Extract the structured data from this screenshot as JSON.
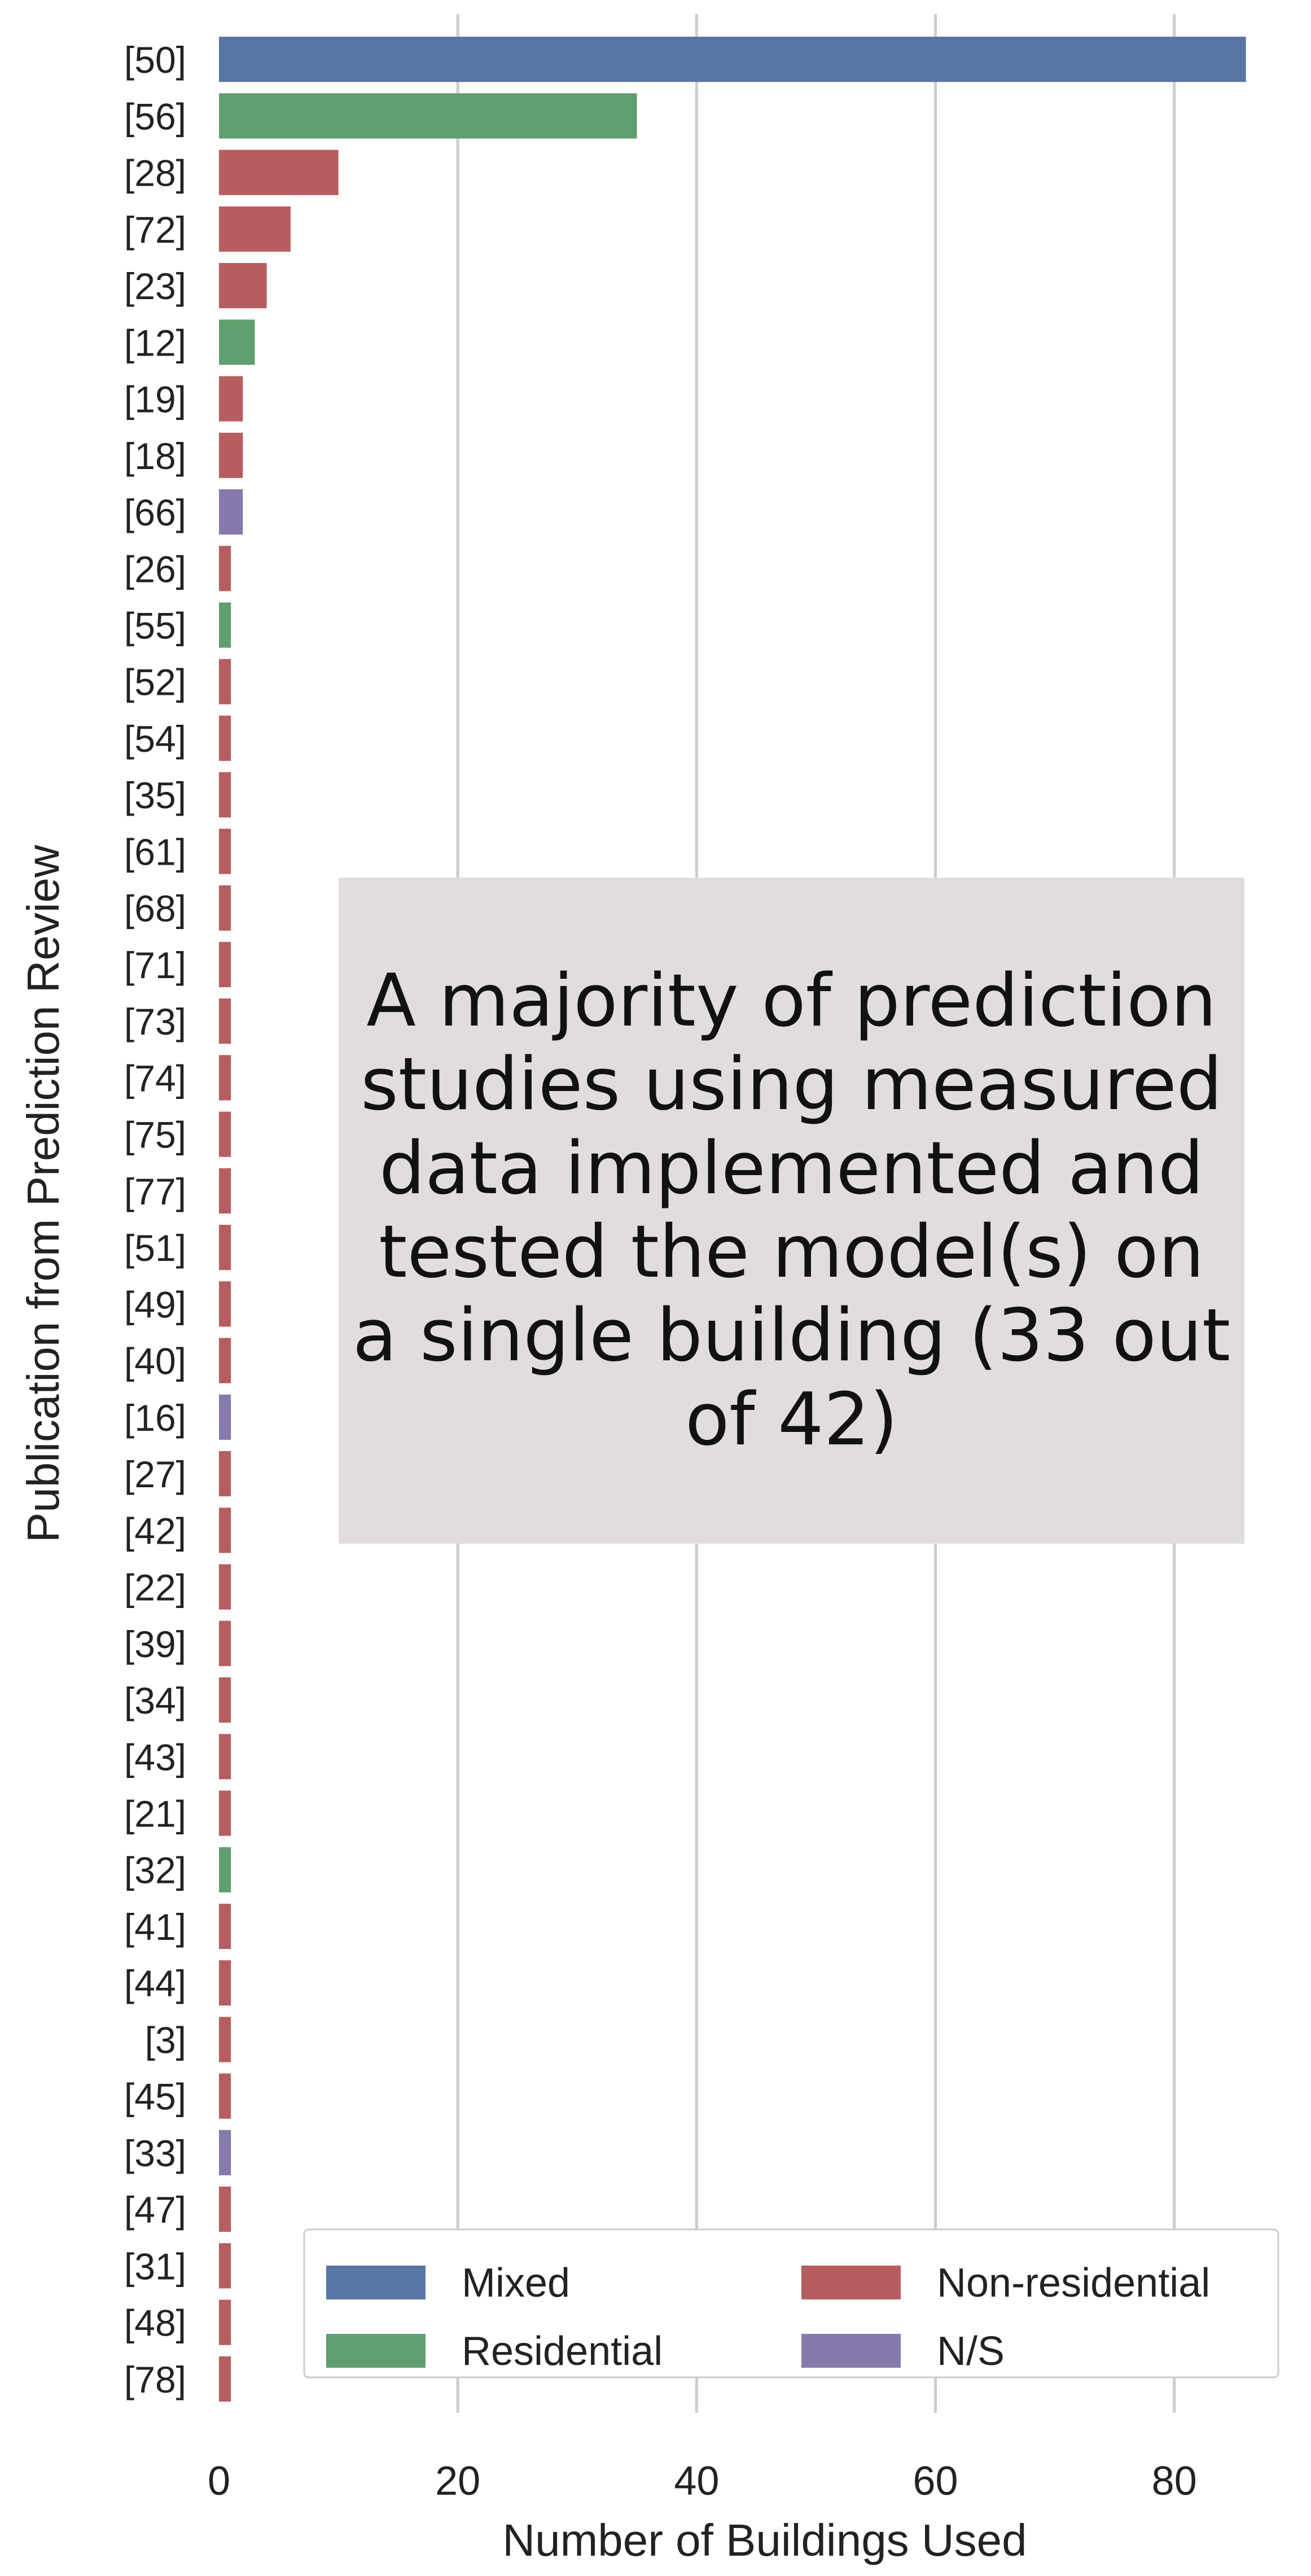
{
  "chart_data": {
    "type": "bar",
    "orientation": "horizontal",
    "title": "",
    "xlabel": "Number of Buildings Used",
    "ylabel": "Publication from Prediction Review",
    "xlim": [
      0,
      88
    ],
    "xticks": [
      0,
      20,
      40,
      60,
      80
    ],
    "grid": "vertical",
    "legend_position": "bottom-right",
    "categories": [
      "[50]",
      "[56]",
      "[28]",
      "[72]",
      "[23]",
      "[12]",
      "[19]",
      "[18]",
      "[66]",
      "[26]",
      "[55]",
      "[52]",
      "[54]",
      "[35]",
      "[61]",
      "[68]",
      "[71]",
      "[73]",
      "[74]",
      "[75]",
      "[77]",
      "[51]",
      "[49]",
      "[40]",
      "[16]",
      "[27]",
      "[42]",
      "[22]",
      "[39]",
      "[34]",
      "[43]",
      "[21]",
      "[32]",
      "[41]",
      "[44]",
      "[3]",
      "[45]",
      "[33]",
      "[47]",
      "[31]",
      "[48]",
      "[78]"
    ],
    "values": [
      86,
      35,
      10,
      6,
      4,
      3,
      2,
      2,
      2,
      1,
      1,
      1,
      1,
      1,
      1,
      1,
      1,
      1,
      1,
      1,
      1,
      1,
      1,
      1,
      1,
      1,
      1,
      1,
      1,
      1,
      1,
      1,
      1,
      1,
      1,
      1,
      1,
      1,
      1,
      1,
      1,
      1
    ],
    "groups": [
      "Mixed",
      "Residential",
      "Non-residential",
      "Non-residential",
      "Non-residential",
      "Residential",
      "Non-residential",
      "Non-residential",
      "N/S",
      "Non-residential",
      "Residential",
      "Non-residential",
      "Non-residential",
      "Non-residential",
      "Non-residential",
      "Non-residential",
      "Non-residential",
      "Non-residential",
      "Non-residential",
      "Non-residential",
      "Non-residential",
      "Non-residential",
      "Non-residential",
      "Non-residential",
      "N/S",
      "Non-residential",
      "Non-residential",
      "Non-residential",
      "Non-residential",
      "Non-residential",
      "Non-residential",
      "Non-residential",
      "Residential",
      "Non-residential",
      "Non-residential",
      "Non-residential",
      "Non-residential",
      "N/S",
      "Non-residential",
      "Non-residential",
      "Non-residential",
      "Non-residential"
    ],
    "legend": [
      {
        "name": "Mixed",
        "color": "#5975a4"
      },
      {
        "name": "Residential",
        "color": "#5f9e6e"
      },
      {
        "name": "Non-residential",
        "color": "#b65d60"
      },
      {
        "name": "N/S",
        "color": "#857aab"
      }
    ],
    "annotation": "A majority of prediction studies using measured data implemented and tested the model(s) on a single building (33 out of 42)"
  }
}
